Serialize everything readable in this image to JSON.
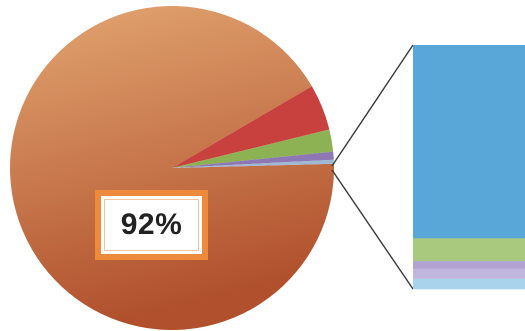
{
  "chart_data": {
    "type": "bar-of-pie",
    "pie": {
      "slices": [
        {
          "value": 92,
          "color": "#c8643a"
        },
        {
          "value": 4.6,
          "color": "#c9413f"
        },
        {
          "value": 2.2,
          "color": "#8cb254"
        },
        {
          "value": 0.8,
          "color": "#8e78b4"
        },
        {
          "value": 0.4,
          "color": "#9fb8d4"
        }
      ],
      "callout_label": "92%",
      "gradient_light": "#e3a672",
      "gradient_dark": "#b0502c"
    },
    "stacked_bar": {
      "segments": [
        {
          "value": 79.2,
          "color": "#58a7d8"
        },
        {
          "value": 9.4,
          "color": "#a9c97f"
        },
        {
          "value": 3.1,
          "color": "#b2a3d4"
        },
        {
          "value": 4.1,
          "color": "#c3b6de"
        },
        {
          "value": 4.2,
          "color": "#a9d3ec"
        }
      ]
    }
  }
}
